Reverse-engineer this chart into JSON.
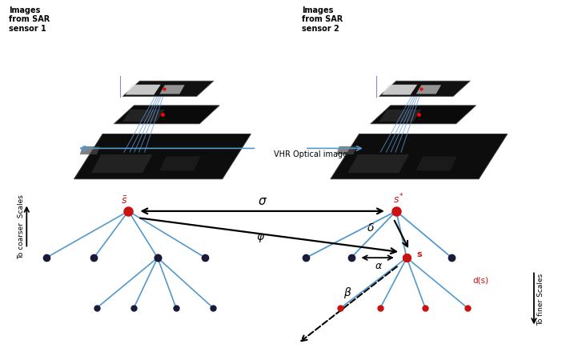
{
  "fig_width": 7.12,
  "fig_height": 4.56,
  "dpi": 100,
  "bg_color": "#ffffff",
  "top_panel": {
    "label1": "Images\nfrom SAR\nsensor 1",
    "label2": "Images\nfrom SAR\nsensor 2",
    "optical_label": "VHR Optical image"
  },
  "bottom_panel": {
    "sigma_label": "σ",
    "phi_label": "φ",
    "delta_label": "δ",
    "alpha_label": "α",
    "beta_label": "β",
    "d_s_label": "d(s)",
    "s_label": "s",
    "blue_edge": "#5599cc",
    "dark_node": "#1a1a3a",
    "red_node": "#cc1111"
  }
}
